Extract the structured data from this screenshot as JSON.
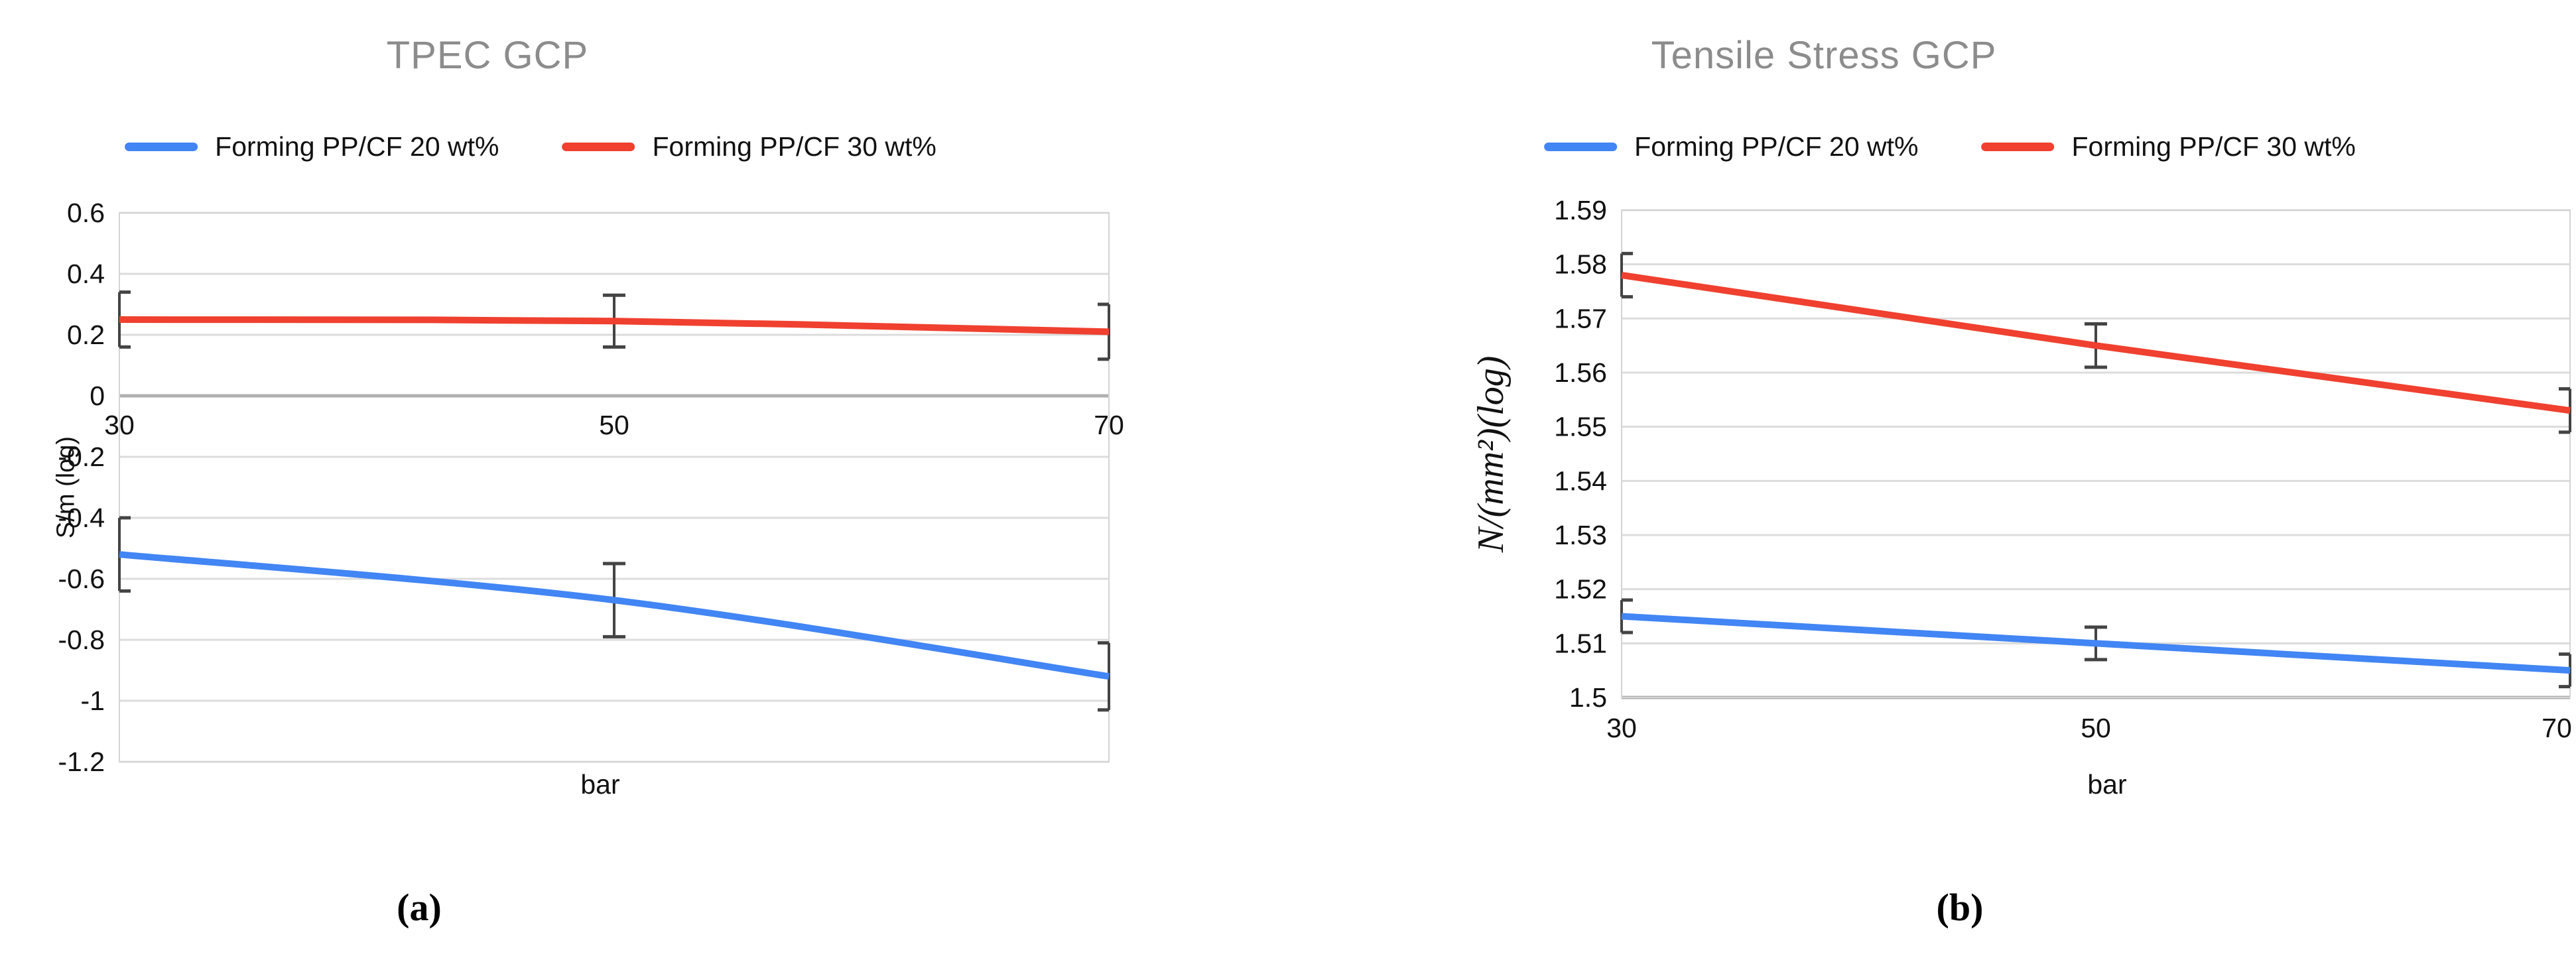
{
  "page": {
    "background": "#ffffff"
  },
  "colors": {
    "series_blue": "#4285F4",
    "series_red": "#F0402F",
    "title_text": "#8C8C8C",
    "axis_text": "#111111",
    "grid_line": "#DCDCDC",
    "baseline_line": "#B0B0B0",
    "plot_border": "#D4D4D4",
    "error_bar": "#444444"
  },
  "figure": {
    "sublabel_a": "(a)",
    "sublabel_b": "(b)"
  },
  "chart_data": [
    {
      "type": "line",
      "title": "TPEC GCP",
      "xlabel": "bar",
      "ylabel": "S/m (log)",
      "x": [
        30,
        50,
        70
      ],
      "x_tick_labels": [
        "30",
        "50",
        "70"
      ],
      "series": [
        {
          "name": "Forming PP/CF 20 wt%",
          "color": "blue",
          "values": [
            -0.52,
            -0.67,
            -0.92
          ],
          "error": [
            0.12,
            0.12,
            0.11
          ]
        },
        {
          "name": "Forming PP/CF 30 wt%",
          "color": "red",
          "values": [
            0.25,
            0.245,
            0.21
          ],
          "error": [
            0.09,
            0.085,
            0.09
          ]
        }
      ],
      "ylim": [
        -1.2,
        0.6
      ],
      "yticks": [
        0.6,
        0.4,
        0.2,
        0,
        -0.2,
        -0.4,
        -0.6,
        -0.8,
        -1,
        -1.2
      ],
      "ytick_labels": [
        "0.6",
        "0.4",
        "0.2",
        "0",
        "-0.2",
        "-0.4",
        "-0.6",
        "-0.8",
        "-1",
        "-1.2"
      ],
      "baseline": 0,
      "x_labels_at_baseline": true,
      "grid": true,
      "legend_position": "top",
      "smooth": true
    },
    {
      "type": "line",
      "title": "Tensile Stress GCP",
      "xlabel": "bar",
      "ylabel": "N/(mm²)(log)",
      "x": [
        30,
        50,
        70
      ],
      "x_tick_labels": [
        "30",
        "50",
        "70"
      ],
      "series": [
        {
          "name": "Forming PP/CF 20 wt%",
          "color": "blue",
          "values": [
            1.515,
            1.51,
            1.505
          ],
          "error": [
            0.003,
            0.003,
            0.003
          ]
        },
        {
          "name": "Forming PP/CF 30 wt%",
          "color": "red",
          "values": [
            1.578,
            1.565,
            1.553
          ],
          "error": [
            0.004,
            0.004,
            0.004
          ]
        }
      ],
      "ylim": [
        1.5,
        1.59
      ],
      "yticks": [
        1.59,
        1.58,
        1.57,
        1.56,
        1.55,
        1.54,
        1.53,
        1.52,
        1.51,
        1.5
      ],
      "ytick_labels": [
        "1.59",
        "1.58",
        "1.57",
        "1.56",
        "1.55",
        "1.54",
        "1.53",
        "1.52",
        "1.51",
        "1.5"
      ],
      "baseline": 1.5,
      "x_labels_at_baseline": false,
      "grid": true,
      "legend_position": "top",
      "smooth": false
    }
  ]
}
